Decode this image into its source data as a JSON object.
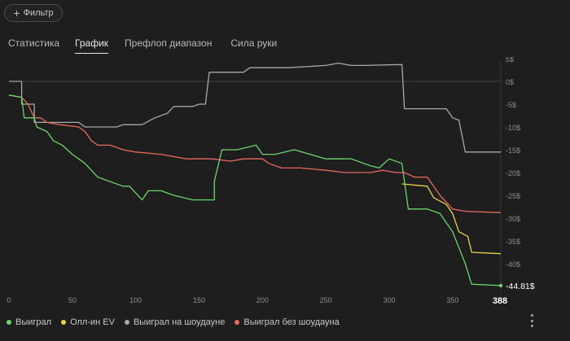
{
  "filter_button": {
    "label": "Фильтр",
    "icon": "plus-icon"
  },
  "tabs": [
    {
      "label": "Статистика",
      "active": false
    },
    {
      "label": "График",
      "active": true
    },
    {
      "label": "Префлоп диапазон",
      "active": false
    },
    {
      "label": "Сила руки",
      "active": false
    }
  ],
  "chart_data": {
    "type": "line",
    "x_ticks": [
      "0",
      "50",
      "100",
      "150",
      "200",
      "250",
      "300",
      "350"
    ],
    "y_ticks": [
      "5$",
      "0$",
      "-5$",
      "-10$",
      "-15$",
      "-20$",
      "-25$",
      "-30$",
      "-35$",
      "-40$"
    ],
    "xlim": [
      0,
      388
    ],
    "ylim": [
      -45,
      7
    ],
    "final_value_label": "-44.81$",
    "final_hand_label": "388",
    "colors": {
      "won": "#6bd46b",
      "allin_ev": "#e6d54a",
      "showdown": "#a8a8a8",
      "non_showdown": "#e46a5e"
    },
    "series": [
      {
        "name": "Выиграл",
        "color": "#6bd46b",
        "points": [
          [
            0,
            -3
          ],
          [
            10,
            -3.5
          ],
          [
            12,
            -8
          ],
          [
            20,
            -8
          ],
          [
            22,
            -10
          ],
          [
            30,
            -11
          ],
          [
            35,
            -13
          ],
          [
            42,
            -14
          ],
          [
            50,
            -16
          ],
          [
            55,
            -17
          ],
          [
            60,
            -18
          ],
          [
            70,
            -21
          ],
          [
            80,
            -22
          ],
          [
            90,
            -23
          ],
          [
            95,
            -23
          ],
          [
            105,
            -26
          ],
          [
            110,
            -24
          ],
          [
            120,
            -24
          ],
          [
            130,
            -25
          ],
          [
            145,
            -26
          ],
          [
            162,
            -26
          ],
          [
            162,
            -22
          ],
          [
            168,
            -15
          ],
          [
            180,
            -15
          ],
          [
            195,
            -14
          ],
          [
            200,
            -16
          ],
          [
            210,
            -16
          ],
          [
            225,
            -15
          ],
          [
            250,
            -17
          ],
          [
            270,
            -17
          ],
          [
            285,
            -18.5
          ],
          [
            292,
            -19
          ],
          [
            300,
            -17
          ],
          [
            310,
            -18
          ],
          [
            315,
            -28
          ],
          [
            330,
            -28
          ],
          [
            340,
            -29
          ],
          [
            350,
            -33
          ],
          [
            360,
            -40
          ],
          [
            365,
            -44.5
          ],
          [
            388,
            -44.81
          ]
        ]
      },
      {
        "name": "Олл-ин EV",
        "color": "#e6d54a",
        "points": [
          [
            310,
            -22.5
          ],
          [
            330,
            -23
          ],
          [
            335,
            -25.5
          ],
          [
            345,
            -27
          ],
          [
            350,
            -29
          ],
          [
            355,
            -33
          ],
          [
            362,
            -34
          ],
          [
            365,
            -37.5
          ],
          [
            388,
            -37.8
          ]
        ]
      },
      {
        "name": "Выиграл на шоудауне",
        "color": "#a8a8a8",
        "points": [
          [
            0,
            0
          ],
          [
            10,
            0
          ],
          [
            10,
            -5
          ],
          [
            20,
            -5
          ],
          [
            20,
            -9
          ],
          [
            55,
            -9
          ],
          [
            60,
            -10
          ],
          [
            85,
            -10
          ],
          [
            90,
            -9.5
          ],
          [
            105,
            -9.5
          ],
          [
            115,
            -8
          ],
          [
            125,
            -7
          ],
          [
            130,
            -5.5
          ],
          [
            145,
            -5.5
          ],
          [
            150,
            -5
          ],
          [
            155,
            -5
          ],
          [
            158,
            2
          ],
          [
            185,
            2
          ],
          [
            190,
            3
          ],
          [
            220,
            3
          ],
          [
            250,
            3.5
          ],
          [
            260,
            4
          ],
          [
            270,
            3.5
          ],
          [
            280,
            3.5
          ],
          [
            310,
            3.7
          ],
          [
            312,
            -6
          ],
          [
            345,
            -6
          ],
          [
            350,
            -8
          ],
          [
            355,
            -8.5
          ],
          [
            360,
            -15.5
          ],
          [
            388,
            -15.5
          ]
        ]
      },
      {
        "name": "Выиграл без шоудауна",
        "color": "#e46a5e",
        "points": [
          [
            0,
            -3
          ],
          [
            10,
            -3.5
          ],
          [
            15,
            -5
          ],
          [
            20,
            -8
          ],
          [
            25,
            -8
          ],
          [
            30,
            -9
          ],
          [
            40,
            -9.5
          ],
          [
            55,
            -10
          ],
          [
            60,
            -11
          ],
          [
            65,
            -13
          ],
          [
            70,
            -14
          ],
          [
            80,
            -14
          ],
          [
            90,
            -15
          ],
          [
            100,
            -15.5
          ],
          [
            120,
            -16
          ],
          [
            140,
            -17
          ],
          [
            160,
            -17
          ],
          [
            175,
            -17.5
          ],
          [
            185,
            -17
          ],
          [
            200,
            -17
          ],
          [
            205,
            -18
          ],
          [
            215,
            -19
          ],
          [
            230,
            -19
          ],
          [
            250,
            -19.5
          ],
          [
            265,
            -20
          ],
          [
            285,
            -20
          ],
          [
            295,
            -19.5
          ],
          [
            305,
            -20
          ],
          [
            312,
            -20
          ],
          [
            320,
            -21
          ],
          [
            330,
            -21
          ],
          [
            340,
            -25
          ],
          [
            350,
            -28
          ],
          [
            360,
            -28.5
          ],
          [
            388,
            -28.8
          ]
        ]
      }
    ],
    "legend_placement": "bottom-left",
    "grid": false
  },
  "more_menu_icon": "more-vertical-icon"
}
